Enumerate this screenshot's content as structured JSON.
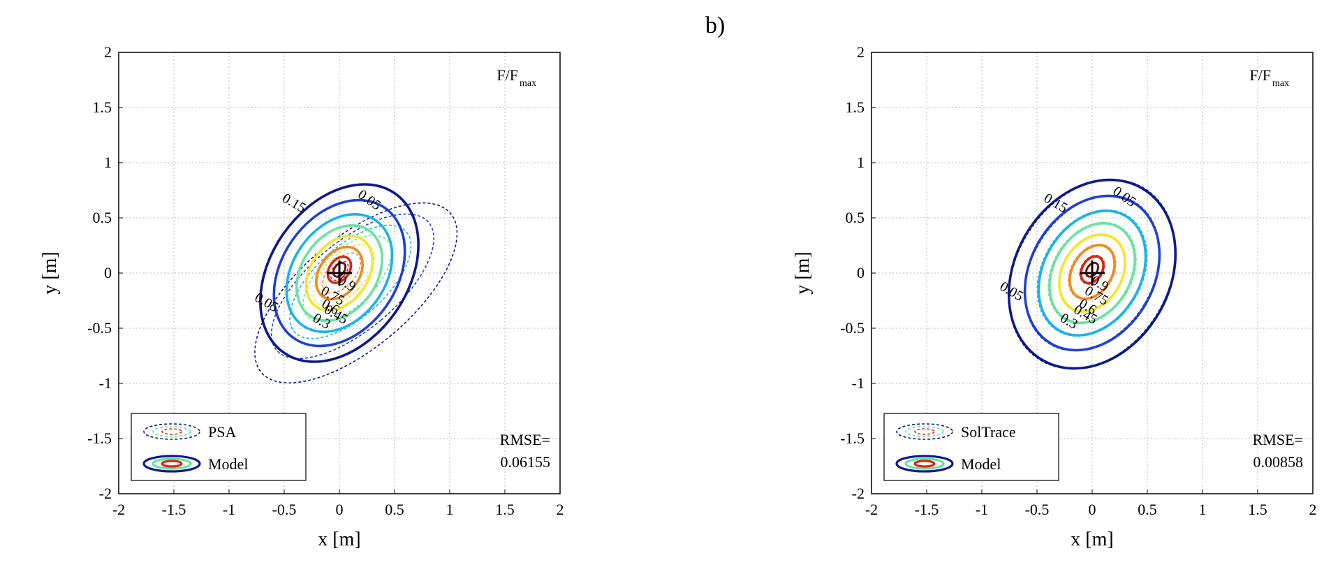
{
  "panel_label": "b)",
  "chart_data": [
    {
      "type": "contour",
      "xlabel": "x [m]",
      "ylabel": "y [m]",
      "xlim": [
        -2,
        2
      ],
      "ylim": [
        -2,
        2
      ],
      "xticks": [
        "-2",
        "-1.5",
        "-1",
        "-0.5",
        "0",
        "0.5",
        "1",
        "1.5",
        "2"
      ],
      "yticks": [
        "2",
        "1.5",
        "1",
        "0.5",
        "0",
        "-0.5",
        "-1",
        "-1.5",
        "-2"
      ],
      "grid": true,
      "quantity_label": "F/F",
      "quantity_subscript": "max",
      "legend_position": "bottom-left",
      "legend": [
        {
          "name": "PSA",
          "style": "dashed"
        },
        {
          "name": "Model",
          "style": "solid"
        }
      ],
      "rmse_label": "RMSE=",
      "rmse_value": "0.06155",
      "contour_levels": [
        "0.05",
        "0.15",
        "0.3",
        "0.45",
        "0.6",
        "0.75",
        "0.9"
      ],
      "level_colors": [
        "#0c1a8a",
        "#1f3fd6",
        "#1ab2ec",
        "#69e3a1",
        "#f3e62a",
        "#f08a1d",
        "#d42a15",
        "#7a0c0c"
      ],
      "model_contours": [
        {
          "level": 0.05,
          "cx": 0.0,
          "cy": 0.0,
          "rx": 0.62,
          "ry": 0.88,
          "angle": 35
        },
        {
          "level": 0.15,
          "cx": 0.0,
          "cy": 0.0,
          "rx": 0.52,
          "ry": 0.72,
          "angle": 35
        },
        {
          "level": 0.3,
          "cx": 0.0,
          "cy": 0.0,
          "rx": 0.42,
          "ry": 0.58,
          "angle": 35
        },
        {
          "level": 0.45,
          "cx": 0.0,
          "cy": 0.0,
          "rx": 0.34,
          "ry": 0.47,
          "angle": 35
        },
        {
          "level": 0.6,
          "cx": 0.0,
          "cy": 0.0,
          "rx": 0.26,
          "ry": 0.37,
          "angle": 35
        },
        {
          "level": 0.75,
          "cx": 0.0,
          "cy": 0.0,
          "rx": 0.18,
          "ry": 0.26,
          "angle": 35
        },
        {
          "level": 0.9,
          "cx": 0.0,
          "cy": 0.03,
          "rx": 0.09,
          "ry": 0.13,
          "angle": 35
        }
      ],
      "reference_contours": [
        {
          "level": 0.05,
          "cx": 0.15,
          "cy": -0.18,
          "rx": 0.5,
          "ry": 1.12,
          "angle": 50
        },
        {
          "level": 0.15,
          "cx": 0.12,
          "cy": -0.12,
          "rx": 0.4,
          "ry": 0.9,
          "angle": 50
        },
        {
          "level": 0.3,
          "cx": 0.1,
          "cy": -0.08,
          "rx": 0.32,
          "ry": 0.68,
          "angle": 48
        },
        {
          "level": 0.45,
          "cx": 0.07,
          "cy": -0.05,
          "rx": 0.25,
          "ry": 0.5,
          "angle": 46
        },
        {
          "level": 0.6,
          "cx": 0.04,
          "cy": -0.02,
          "rx": 0.18,
          "ry": 0.35,
          "angle": 44
        },
        {
          "level": 0.75,
          "cx": 0.02,
          "cy": 0.0,
          "rx": 0.12,
          "ry": 0.22,
          "angle": 42
        },
        {
          "level": 0.9,
          "cx": 0.0,
          "cy": 0.02,
          "rx": 0.06,
          "ry": 0.1,
          "angle": 40
        }
      ],
      "labels": [
        {
          "text": "0.05",
          "x": 0.25,
          "y": 0.63,
          "color": "#0c1a8a"
        },
        {
          "text": "0.15",
          "x": -0.43,
          "y": 0.6,
          "color": "#1f3fd6"
        },
        {
          "text": "0.05",
          "x": -0.68,
          "y": -0.3,
          "color": "#0c1a8a"
        },
        {
          "text": "0.9",
          "x": 0.05,
          "y": -0.13,
          "color": "#7a0c0c"
        },
        {
          "text": "0.75",
          "x": -0.08,
          "y": -0.24,
          "color": "#d42a15"
        },
        {
          "text": "0.6",
          "x": -0.1,
          "y": -0.34,
          "color": "#f08a1d"
        },
        {
          "text": "0.45",
          "x": -0.05,
          "y": -0.41,
          "color": "#69e3a1"
        },
        {
          "text": "0.3",
          "x": -0.18,
          "y": -0.47,
          "color": "#1ab2ec"
        }
      ],
      "peak_marker": {
        "x": 0.0,
        "y": 0.0
      }
    },
    {
      "type": "contour",
      "xlabel": "x [m]",
      "ylabel": "y [m]",
      "xlim": [
        -2,
        2
      ],
      "ylim": [
        -2,
        2
      ],
      "xticks": [
        "-2",
        "-1.5",
        "-1",
        "-0.5",
        "0",
        "0.5",
        "1",
        "1.5",
        "2"
      ],
      "yticks": [
        "2",
        "1.5",
        "1",
        "0.5",
        "0",
        "-0.5",
        "-1",
        "-1.5",
        "-2"
      ],
      "grid": true,
      "quantity_label": "F/F",
      "quantity_subscript": "max",
      "legend_position": "bottom-left",
      "legend": [
        {
          "name": "SolTrace",
          "style": "dashed"
        },
        {
          "name": "Model",
          "style": "solid"
        }
      ],
      "rmse_label": "RMSE=",
      "rmse_value": "0.00858",
      "contour_levels": [
        "0.05",
        "0.15",
        "0.3",
        "0.45",
        "0.6",
        "0.75",
        "0.9"
      ],
      "level_colors": [
        "#0c1a8a",
        "#1f3fd6",
        "#1ab2ec",
        "#69e3a1",
        "#f3e62a",
        "#f08a1d",
        "#d42a15",
        "#7a0c0c"
      ],
      "model_contours": [
        {
          "level": 0.05,
          "cx": 0.0,
          "cy": -0.01,
          "rx": 0.7,
          "ry": 0.9,
          "angle": 30
        },
        {
          "level": 0.15,
          "cx": 0.0,
          "cy": 0.0,
          "rx": 0.56,
          "ry": 0.74,
          "angle": 30
        },
        {
          "level": 0.3,
          "cx": 0.0,
          "cy": 0.0,
          "rx": 0.44,
          "ry": 0.6,
          "angle": 30
        },
        {
          "level": 0.45,
          "cx": 0.0,
          "cy": 0.0,
          "rx": 0.35,
          "ry": 0.48,
          "angle": 30
        },
        {
          "level": 0.6,
          "cx": 0.0,
          "cy": 0.0,
          "rx": 0.27,
          "ry": 0.37,
          "angle": 30
        },
        {
          "level": 0.75,
          "cx": 0.0,
          "cy": 0.01,
          "rx": 0.18,
          "ry": 0.26,
          "angle": 30
        },
        {
          "level": 0.9,
          "cx": 0.0,
          "cy": 0.03,
          "rx": 0.09,
          "ry": 0.13,
          "angle": 30
        }
      ],
      "reference_contours": [
        {
          "level": 0.05,
          "cx": 0.0,
          "cy": -0.01,
          "rx": 0.69,
          "ry": 0.91,
          "angle": 31
        },
        {
          "level": 0.15,
          "cx": 0.0,
          "cy": 0.0,
          "rx": 0.55,
          "ry": 0.75,
          "angle": 31
        },
        {
          "level": 0.3,
          "cx": 0.0,
          "cy": 0.0,
          "rx": 0.45,
          "ry": 0.61,
          "angle": 31
        },
        {
          "level": 0.45,
          "cx": 0.0,
          "cy": 0.0,
          "rx": 0.36,
          "ry": 0.49,
          "angle": 31
        },
        {
          "level": 0.6,
          "cx": 0.0,
          "cy": 0.0,
          "rx": 0.27,
          "ry": 0.38,
          "angle": 31
        },
        {
          "level": 0.75,
          "cx": 0.0,
          "cy": 0.01,
          "rx": 0.19,
          "ry": 0.27,
          "angle": 31
        },
        {
          "level": 0.9,
          "cx": 0.0,
          "cy": 0.03,
          "rx": 0.1,
          "ry": 0.14,
          "angle": 31
        }
      ],
      "labels": [
        {
          "text": "0.05",
          "x": 0.27,
          "y": 0.66,
          "color": "#0c1a8a"
        },
        {
          "text": "0.15",
          "x": -0.35,
          "y": 0.6,
          "color": "#1f3fd6"
        },
        {
          "text": "0.05",
          "x": -0.75,
          "y": -0.2,
          "color": "#0c1a8a"
        },
        {
          "text": "0.9",
          "x": 0.05,
          "y": -0.13,
          "color": "#7a0c0c"
        },
        {
          "text": "0.75",
          "x": 0.02,
          "y": -0.24,
          "color": "#d42a15"
        },
        {
          "text": "0.6",
          "x": -0.06,
          "y": -0.34,
          "color": "#f08a1d"
        },
        {
          "text": "0.45",
          "x": -0.08,
          "y": -0.41,
          "color": "#69e3a1"
        },
        {
          "text": "0.3",
          "x": -0.23,
          "y": -0.47,
          "color": "#1ab2ec"
        }
      ],
      "peak_marker": {
        "x": 0.0,
        "y": 0.0
      }
    }
  ]
}
